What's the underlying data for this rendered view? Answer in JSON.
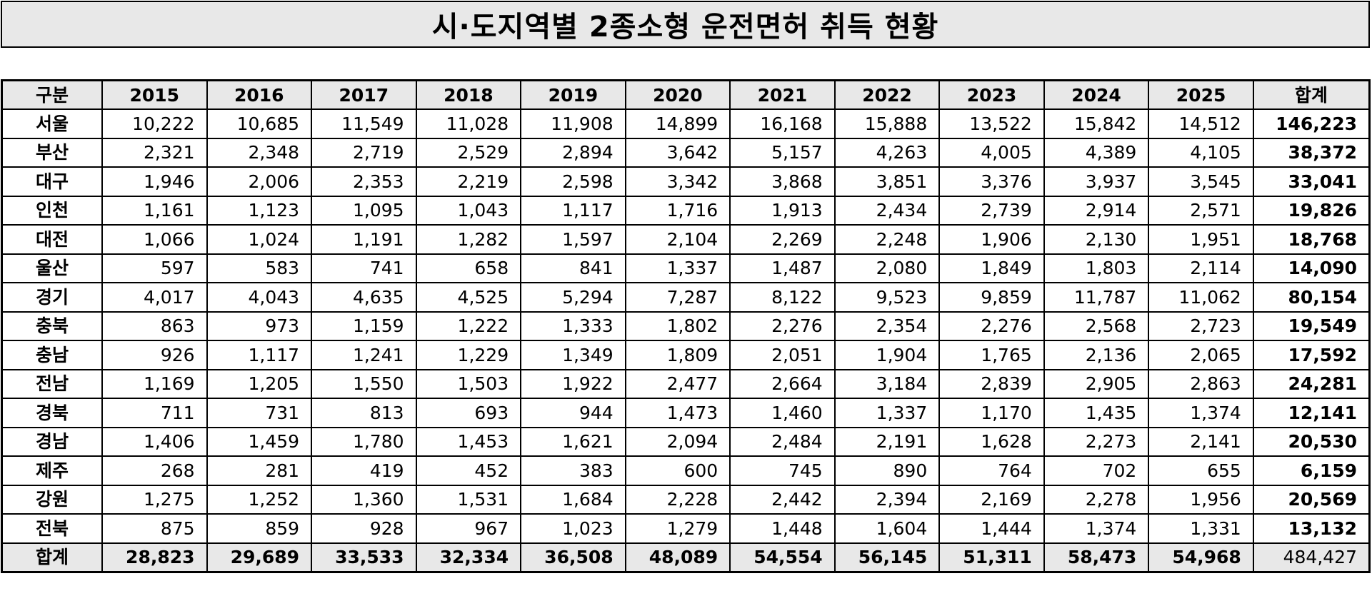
{
  "title": "시·도지역별 2종소형 운전면허 취득 현황",
  "table": {
    "header_label": "구분",
    "years": [
      "2015",
      "2016",
      "2017",
      "2018",
      "2019",
      "2020",
      "2021",
      "2022",
      "2023",
      "2024",
      "2025"
    ],
    "total_label": "합계",
    "rows": [
      {
        "region": "서울",
        "values": [
          "10,222",
          "10,685",
          "11,549",
          "11,028",
          "11,908",
          "14,899",
          "16,168",
          "15,888",
          "13,522",
          "15,842",
          "14,512"
        ],
        "total": "146,223"
      },
      {
        "region": "부산",
        "values": [
          "2,321",
          "2,348",
          "2,719",
          "2,529",
          "2,894",
          "3,642",
          "5,157",
          "4,263",
          "4,005",
          "4,389",
          "4,105"
        ],
        "total": "38,372"
      },
      {
        "region": "대구",
        "values": [
          "1,946",
          "2,006",
          "2,353",
          "2,219",
          "2,598",
          "3,342",
          "3,868",
          "3,851",
          "3,376",
          "3,937",
          "3,545"
        ],
        "total": "33,041"
      },
      {
        "region": "인천",
        "values": [
          "1,161",
          "1,123",
          "1,095",
          "1,043",
          "1,117",
          "1,716",
          "1,913",
          "2,434",
          "2,739",
          "2,914",
          "2,571"
        ],
        "total": "19,826"
      },
      {
        "region": "대전",
        "values": [
          "1,066",
          "1,024",
          "1,191",
          "1,282",
          "1,597",
          "2,104",
          "2,269",
          "2,248",
          "1,906",
          "2,130",
          "1,951"
        ],
        "total": "18,768"
      },
      {
        "region": "울산",
        "values": [
          "597",
          "583",
          "741",
          "658",
          "841",
          "1,337",
          "1,487",
          "2,080",
          "1,849",
          "1,803",
          "2,114"
        ],
        "total": "14,090"
      },
      {
        "region": "경기",
        "values": [
          "4,017",
          "4,043",
          "4,635",
          "4,525",
          "5,294",
          "7,287",
          "8,122",
          "9,523",
          "9,859",
          "11,787",
          "11,062"
        ],
        "total": "80,154"
      },
      {
        "region": "충북",
        "values": [
          "863",
          "973",
          "1,159",
          "1,222",
          "1,333",
          "1,802",
          "2,276",
          "2,354",
          "2,276",
          "2,568",
          "2,723"
        ],
        "total": "19,549"
      },
      {
        "region": "충남",
        "values": [
          "926",
          "1,117",
          "1,241",
          "1,229",
          "1,349",
          "1,809",
          "2,051",
          "1,904",
          "1,765",
          "2,136",
          "2,065"
        ],
        "total": "17,592"
      },
      {
        "region": "전남",
        "values": [
          "1,169",
          "1,205",
          "1,550",
          "1,503",
          "1,922",
          "2,477",
          "2,664",
          "3,184",
          "2,839",
          "2,905",
          "2,863"
        ],
        "total": "24,281"
      },
      {
        "region": "경북",
        "values": [
          "711",
          "731",
          "813",
          "693",
          "944",
          "1,473",
          "1,460",
          "1,337",
          "1,170",
          "1,435",
          "1,374"
        ],
        "total": "12,141"
      },
      {
        "region": "경남",
        "values": [
          "1,406",
          "1,459",
          "1,780",
          "1,453",
          "1,621",
          "2,094",
          "2,484",
          "2,191",
          "1,628",
          "2,273",
          "2,141"
        ],
        "total": "20,530"
      },
      {
        "region": "제주",
        "values": [
          "268",
          "281",
          "419",
          "452",
          "383",
          "600",
          "745",
          "890",
          "764",
          "702",
          "655"
        ],
        "total": "6,159"
      },
      {
        "region": "강원",
        "values": [
          "1,275",
          "1,252",
          "1,360",
          "1,531",
          "1,684",
          "2,228",
          "2,442",
          "2,394",
          "2,169",
          "2,278",
          "1,956"
        ],
        "total": "20,569"
      },
      {
        "region": "전북",
        "values": [
          "875",
          "859",
          "928",
          "967",
          "1,023",
          "1,279",
          "1,448",
          "1,604",
          "1,444",
          "1,374",
          "1,331"
        ],
        "total": "13,132"
      }
    ],
    "footer": {
      "label": "합계",
      "values": [
        "28,823",
        "29,689",
        "33,533",
        "32,334",
        "36,508",
        "48,089",
        "54,554",
        "56,145",
        "51,311",
        "58,473",
        "54,968"
      ],
      "total": "484,427"
    }
  }
}
